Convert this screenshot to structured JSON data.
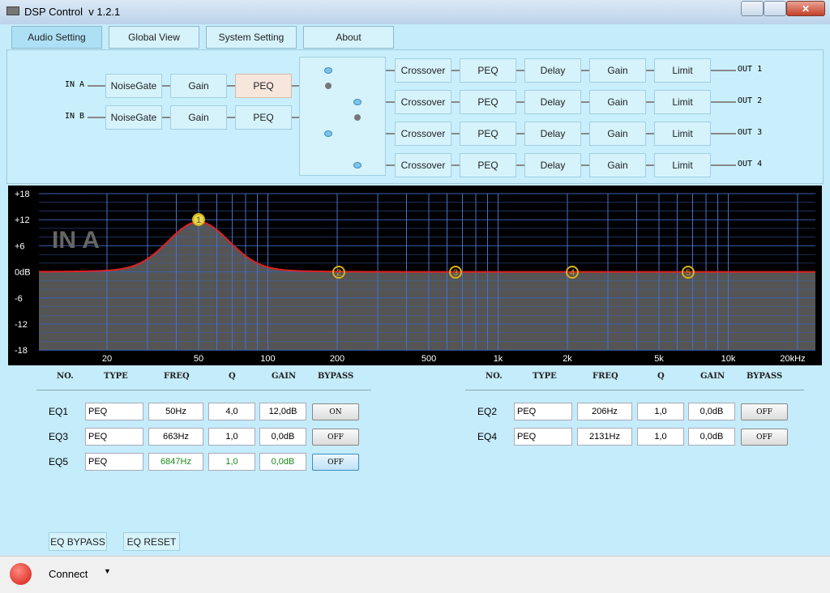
{
  "window": {
    "title": "DSP Control  v 1.2.1"
  },
  "tabs": [
    "Audio Setting",
    "Global View",
    "System Setting",
    "About"
  ],
  "routing": {
    "inputs": [
      {
        "label": "IN A",
        "blocks": [
          "NoiseGate",
          "Gain",
          "PEQ"
        ]
      },
      {
        "label": "IN B",
        "blocks": [
          "NoiseGate",
          "Gain",
          "PEQ"
        ]
      }
    ],
    "outputs": [
      {
        "label": "OUT 1",
        "blocks": [
          "Crossover",
          "PEQ",
          "Delay",
          "Gain",
          "Limit"
        ]
      },
      {
        "label": "OUT 2",
        "blocks": [
          "Crossover",
          "PEQ",
          "Delay",
          "Gain",
          "Limit"
        ]
      },
      {
        "label": "OUT 3",
        "blocks": [
          "Crossover",
          "PEQ",
          "Delay",
          "Gain",
          "Limit"
        ]
      },
      {
        "label": "OUT 4",
        "blocks": [
          "Crossover",
          "PEQ",
          "Delay",
          "Gain",
          "Limit"
        ]
      }
    ]
  },
  "graph": {
    "label": "IN A",
    "y_labels": [
      "+18",
      "+12",
      "+6",
      "0dB",
      "-6",
      "-12",
      "-18"
    ],
    "x_labels": [
      "20",
      "50",
      "100",
      "200",
      "500",
      "1k",
      "2k",
      "5k",
      "10k",
      "20kHz"
    ],
    "points": [
      "1",
      "2",
      "3",
      "4",
      "5"
    ]
  },
  "eq_tables": [
    {
      "columns": [
        "NO.",
        "TYPE",
        "FREQ",
        "Q",
        "GAIN",
        "BYPASS"
      ],
      "rows": [
        [
          "EQ1",
          "PEQ",
          "50Hz",
          "4,0",
          "12,0dB",
          "ON"
        ],
        [
          "EQ3",
          "PEQ",
          "663Hz",
          "1,0",
          "0,0dB",
          "OFF"
        ],
        [
          "EQ5",
          "PEQ",
          "6847Hz",
          "1,0",
          "0,0dB",
          "OFF"
        ]
      ]
    },
    {
      "columns": [
        "NO.",
        "TYPE",
        "FREQ",
        "Q",
        "GAIN",
        "BYPASS"
      ],
      "rows": [
        [
          "EQ2",
          "PEQ",
          "206Hz",
          "1,0",
          "0,0dB",
          "OFF"
        ],
        [
          "EQ4",
          "PEQ",
          "2131Hz",
          "1,0",
          "0,0dB",
          "OFF"
        ]
      ]
    }
  ],
  "buttons": [
    "EQ BYPASS",
    "EQ RESET"
  ],
  "status": {
    "connect": "Connect"
  }
}
